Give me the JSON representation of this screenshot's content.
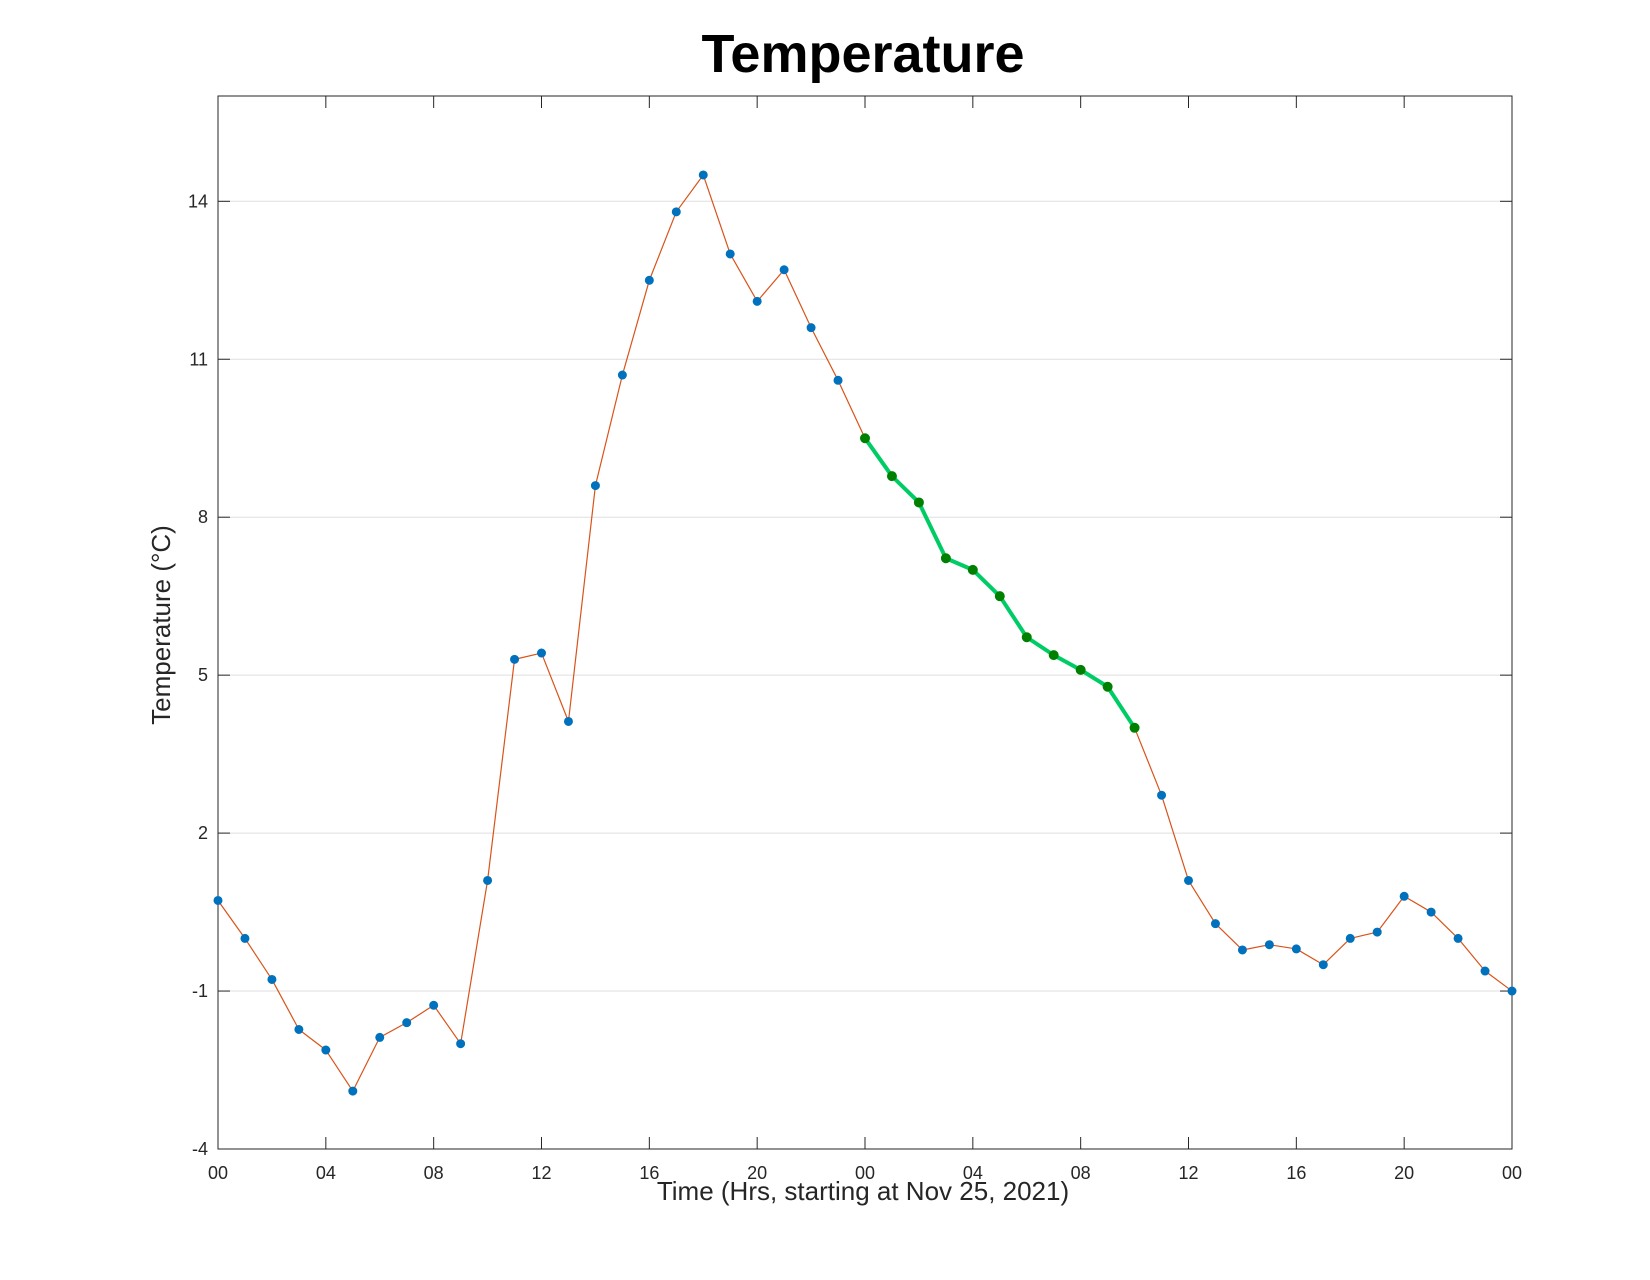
{
  "chart_data": {
    "type": "line",
    "title": "Temperature",
    "xlabel": "Time (Hrs, starting at Nov 25, 2021)",
    "ylabel": "Temperature (°C)",
    "ylim": [
      -4,
      16
    ],
    "xlim": [
      "Nov 25, 2021 00:00",
      "Nov 27, 2021 00:00"
    ],
    "yticks": [
      -4,
      -1,
      2,
      5,
      8,
      11,
      14
    ],
    "xtick_labels": [
      "00",
      "04",
      "08",
      "12",
      "16",
      "20",
      "00",
      "04",
      "08",
      "12",
      "16",
      "20",
      "00"
    ],
    "xtick_times": [
      "Nov 25, 2021 00:00",
      "Nov 25, 2021 04:00",
      "Nov 25, 2021 08:00",
      "Nov 25, 2021 12:00",
      "Nov 25, 2021 16:00",
      "Nov 25, 2021 20:00",
      "Nov 26, 2021 00:00",
      "Nov 26, 2021 04:00",
      "Nov 26, 2021 08:00",
      "Nov 26, 2021 12:00",
      "Nov 26, 2021 16:00",
      "Nov 26, 2021 20:00",
      "Nov 27, 2021 00:00"
    ],
    "grid": "horizontal",
    "series": [
      {
        "x": [
          "Nov 25, 2021 00:00",
          "Nov 25, 2021 01:00",
          "Nov 25, 2021 02:00",
          "Nov 25, 2021 03:00",
          "Nov 25, 2021 04:00",
          "Nov 25, 2021 05:00",
          "Nov 25, 2021 06:00",
          "Nov 25, 2021 07:00",
          "Nov 25, 2021 08:00",
          "Nov 25, 2021 09:00",
          "Nov 25, 2021 10:00",
          "Nov 25, 2021 11:00",
          "Nov 25, 2021 12:00",
          "Nov 25, 2021 13:00",
          "Nov 25, 2021 14:00",
          "Nov 25, 2021 15:00",
          "Nov 25, 2021 16:00",
          "Nov 25, 2021 17:00",
          "Nov 25, 2021 18:00",
          "Nov 25, 2021 19:00",
          "Nov 25, 2021 20:00",
          "Nov 25, 2021 21:00",
          "Nov 25, 2021 22:00",
          "Nov 25, 2021 23:00",
          "Nov 26, 2021 00:00",
          "Nov 26, 2021 01:00",
          "Nov 26, 2021 02:00",
          "Nov 26, 2021 03:00",
          "Nov 26, 2021 04:00",
          "Nov 26, 2021 05:00",
          "Nov 26, 2021 06:00",
          "Nov 26, 2021 07:00",
          "Nov 26, 2021 08:00",
          "Nov 26, 2021 09:00",
          "Nov 26, 2021 10:00",
          "Nov 26, 2021 11:00",
          "Nov 26, 2021 12:00",
          "Nov 26, 2021 13:00",
          "Nov 26, 2021 14:00",
          "Nov 26, 2021 15:00",
          "Nov 26, 2021 16:00",
          "Nov 26, 2021 17:00",
          "Nov 26, 2021 18:00",
          "Nov 26, 2021 19:00",
          "Nov 26, 2021 20:00",
          "Nov 26, 2021 21:00",
          "Nov 26, 2021 22:00",
          "Nov 26, 2021 23:00",
          "Nov 27, 2021 00:00"
        ],
        "values": [
          0.72,
          0.0,
          -0.78,
          -1.73,
          -2.12,
          -2.9,
          -1.88,
          -1.6,
          -1.27,
          -2.0,
          1.1,
          5.3,
          5.42,
          4.12,
          8.6,
          10.7,
          12.5,
          13.8,
          14.5,
          13.0,
          12.1,
          12.7,
          11.6,
          10.6,
          9.5,
          8.78,
          8.28,
          7.22,
          7.0,
          6.5,
          5.72,
          5.38,
          5.1,
          4.78,
          4.0,
          2.72,
          1.1,
          0.28,
          -0.22,
          -0.12,
          -0.2,
          -0.5,
          0.0,
          0.12,
          0.8,
          0.5,
          0.0,
          -0.62,
          -1.0
        ],
        "line_color": "#D95319",
        "marker_color": "#0072BD"
      },
      {
        "x": [
          "Nov 26, 2021 00:00",
          "Nov 26, 2021 01:00",
          "Nov 26, 2021 02:00",
          "Nov 26, 2021 03:00",
          "Nov 26, 2021 04:00",
          "Nov 26, 2021 05:00",
          "Nov 26, 2021 06:00",
          "Nov 26, 2021 07:00",
          "Nov 26, 2021 08:00",
          "Nov 26, 2021 09:00",
          "Nov 26, 2021 10:00"
        ],
        "values": [
          9.5,
          8.78,
          8.28,
          7.22,
          7.0,
          6.5,
          5.72,
          5.38,
          5.1,
          4.78,
          4.0
        ],
        "line_color": "#00CC66",
        "marker_color": "#008000"
      }
    ]
  }
}
